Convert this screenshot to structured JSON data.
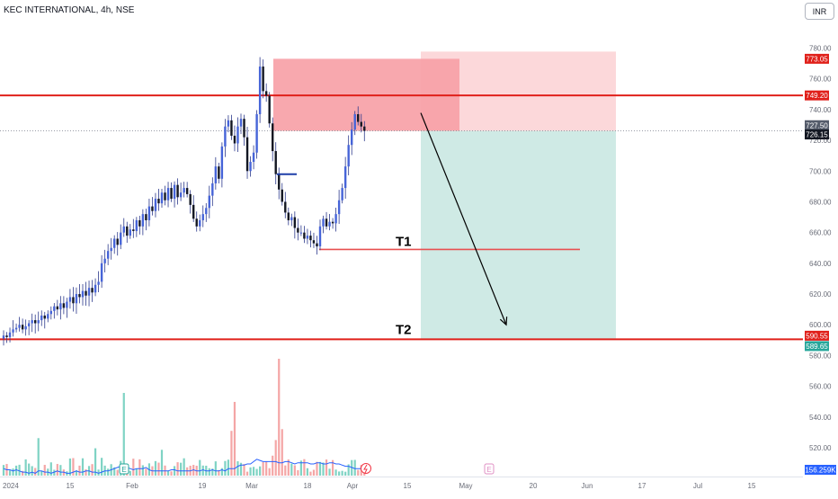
{
  "header": {
    "symbol_line": "KEC INTERNATIONAL, 4h, NSE"
  },
  "currency_button": "INR",
  "colors": {
    "up": "#4664d8",
    "down": "#131722",
    "wick": "#2d3a8c",
    "resistance": "#e0201a",
    "target_line": "#e85050",
    "stop_zone_dark": "#f7a1a7",
    "stop_zone_light": "#fcd8da",
    "profit_zone": "#cfeae5",
    "arrow": "#000000",
    "vol_up": "#7fd3c4",
    "vol_down": "#f4a6a6",
    "vol_ma": "#2962ff"
  },
  "chart_data": {
    "type": "candlestick",
    "title": "KEC INTERNATIONAL, 4h, NSE",
    "currency": "INR",
    "ylim": [
      508,
      792
    ],
    "y_ticks": [
      "780.00",
      "760.00",
      "740.00",
      "720.00",
      "700.00",
      "680.00",
      "660.00",
      "640.00",
      "620.00",
      "600.00",
      "580.00",
      "560.00",
      "540.00",
      "520.00"
    ],
    "x_ticks": [
      "2024",
      "15",
      "Feb",
      "19",
      "Mar",
      "18",
      "Apr",
      "15",
      "May",
      "20",
      "Jun",
      "17",
      "Jul",
      "15"
    ],
    "price_badges": [
      {
        "label": "773.05",
        "value": 773.05,
        "color": "#e0201a"
      },
      {
        "label": "749.20",
        "value": 749.2,
        "color": "#e0201a"
      },
      {
        "label": "727.50",
        "value": 727.5,
        "color": "#555c6b"
      },
      {
        "label": "726.15",
        "value": 726.15,
        "color": "#131722"
      },
      {
        "label": "590.55",
        "value": 590.55,
        "color": "#e0201a"
      },
      {
        "label": "589.65",
        "value": 589.65,
        "color": "#26a69a"
      }
    ],
    "volume_badge": "156.259K",
    "levels": [
      {
        "name": "resistance",
        "value": 749.2
      },
      {
        "name": "support",
        "value": 590.55
      },
      {
        "name": "last_price",
        "value": 726.15
      }
    ],
    "targets": [
      {
        "label": "T1",
        "value": 649
      },
      {
        "label": "T2",
        "value": 590.55
      }
    ],
    "trade_setup": {
      "direction": "short",
      "entry": 726.15,
      "stop": 773.05,
      "target": 590.55
    },
    "swing_low_marker": 698,
    "event_markers": [
      "E",
      "E"
    ],
    "closes": [
      593,
      592,
      595,
      597,
      598,
      600,
      597,
      599,
      601,
      603,
      601,
      603,
      606,
      604,
      607,
      609,
      612,
      610,
      614,
      611,
      615,
      618,
      614,
      620,
      618,
      622,
      619,
      624,
      621,
      626,
      628,
      640,
      643,
      648,
      650,
      656,
      652,
      660,
      664,
      658,
      662,
      661,
      668,
      664,
      672,
      668,
      677,
      674,
      682,
      679,
      686,
      681,
      689,
      682,
      691,
      683,
      686,
      689,
      685,
      678,
      669,
      664,
      668,
      672,
      676,
      684,
      692,
      703,
      695,
      716,
      729,
      733,
      723,
      718,
      729,
      734,
      722,
      700,
      706,
      712,
      737,
      768,
      752,
      749,
      731,
      713,
      698,
      688,
      680,
      673,
      668,
      670,
      663,
      660,
      660,
      656,
      658,
      655,
      653,
      651,
      664,
      669,
      664,
      667,
      666,
      672,
      681,
      689,
      703,
      717,
      727,
      737,
      732,
      729,
      726.15
    ],
    "volume_ma": [
      526,
      525,
      525,
      524,
      525,
      524,
      523,
      523,
      522,
      523,
      522,
      524,
      524,
      523,
      523,
      522,
      523,
      524,
      523,
      523,
      522,
      522,
      523,
      524,
      523,
      523,
      524,
      524,
      523,
      523,
      522,
      523,
      524,
      524,
      525,
      526,
      527,
      528,
      528,
      527,
      526,
      525,
      526,
      526,
      526,
      527,
      525,
      524,
      524,
      524,
      524,
      524,
      524,
      525,
      525,
      524,
      524,
      524,
      524,
      524,
      525,
      524,
      524,
      525,
      524,
      524,
      525,
      524,
      524,
      525,
      524,
      526,
      526,
      526,
      528,
      529,
      529,
      530,
      530,
      532,
      534,
      533,
      532,
      532,
      532,
      532,
      532,
      531,
      531,
      532,
      532,
      531,
      530,
      531,
      531,
      531,
      531,
      530,
      530,
      531,
      531,
      530,
      530,
      531,
      531,
      530,
      530,
      529,
      528,
      528,
      527,
      526,
      526,
      526,
      525
    ]
  }
}
